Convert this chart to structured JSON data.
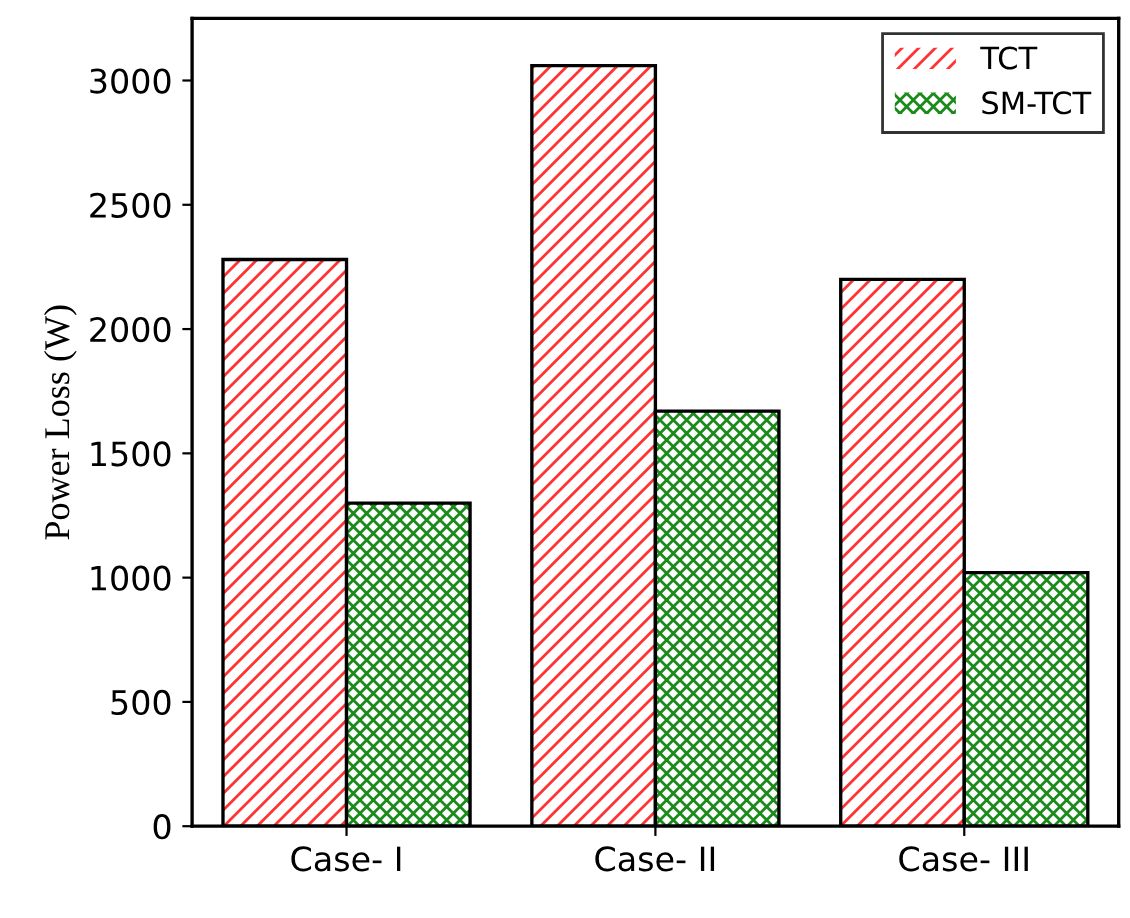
{
  "chart_data": {
    "type": "bar",
    "ylabel": "Power Loss (W)",
    "categories": [
      "Case- I",
      "Case- II",
      "Case- III"
    ],
    "series": [
      {
        "name": "TCT",
        "color": "#ff3333",
        "values": [
          2280,
          3060,
          2200
        ]
      },
      {
        "name": "SM-TCT",
        "color": "#1a8a1a",
        "values": [
          1300,
          1670,
          1020
        ]
      }
    ],
    "ylim": [
      0,
      3250
    ],
    "yticks": [
      0,
      500,
      1000,
      1500,
      2000,
      2500,
      3000
    ],
    "grid": false,
    "legend": "top right"
  }
}
